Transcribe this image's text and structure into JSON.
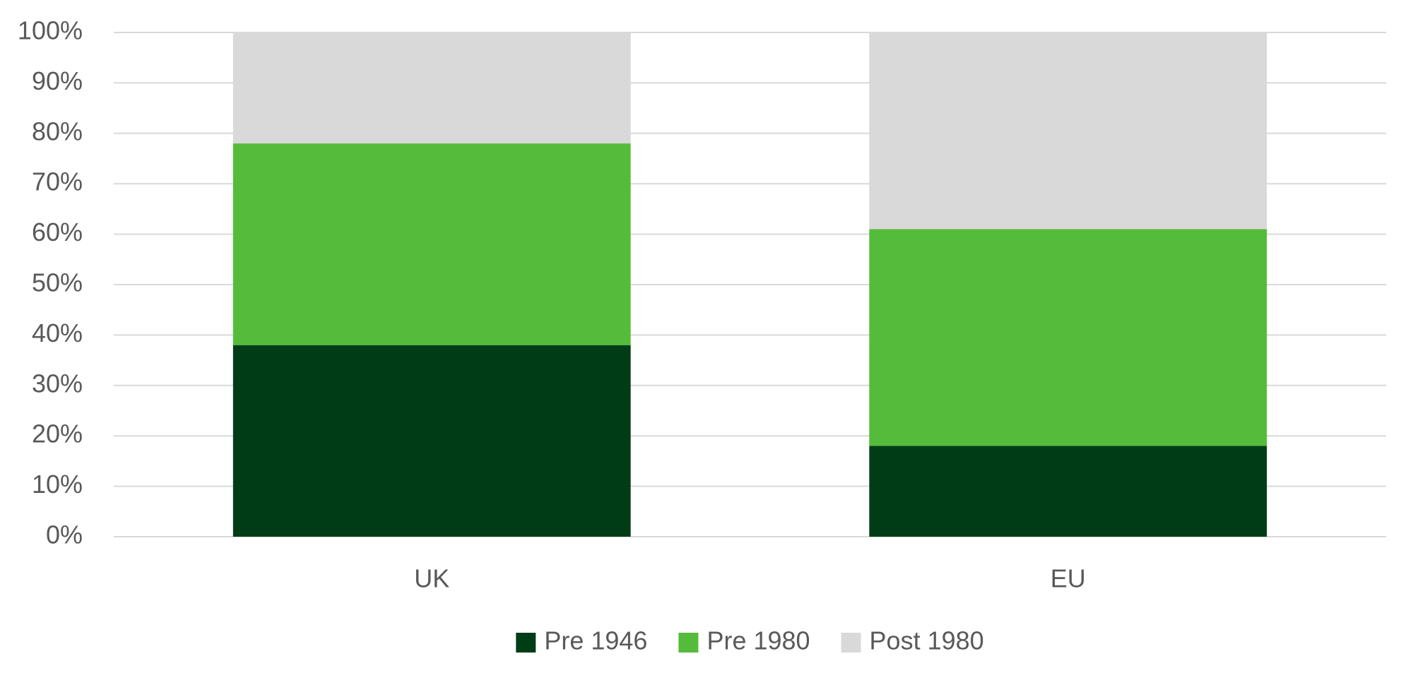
{
  "chart_data": {
    "type": "stacked-bar",
    "categories": [
      "UK",
      "EU"
    ],
    "series": [
      {
        "name": "Pre 1946",
        "color": "#003d17",
        "values": [
          38,
          18
        ]
      },
      {
        "name": "Pre 1980",
        "color": "#55bb3a",
        "values": [
          40,
          43
        ]
      },
      {
        "name": "Post 1980",
        "color": "#d9d9d9",
        "values": [
          22,
          39
        ]
      }
    ],
    "ylim": [
      0,
      100
    ],
    "yticks": [
      {
        "value": 0,
        "label": "0%"
      },
      {
        "value": 10,
        "label": "10%"
      },
      {
        "value": 20,
        "label": "20%"
      },
      {
        "value": 30,
        "label": "30%"
      },
      {
        "value": 40,
        "label": "40%"
      },
      {
        "value": 50,
        "label": "50%"
      },
      {
        "value": 60,
        "label": "60%"
      },
      {
        "value": 70,
        "label": "70%"
      },
      {
        "value": 80,
        "label": "80%"
      },
      {
        "value": 90,
        "label": "90%"
      },
      {
        "value": 100,
        "label": "100%"
      }
    ],
    "grid": true,
    "legend": "bottom"
  }
}
